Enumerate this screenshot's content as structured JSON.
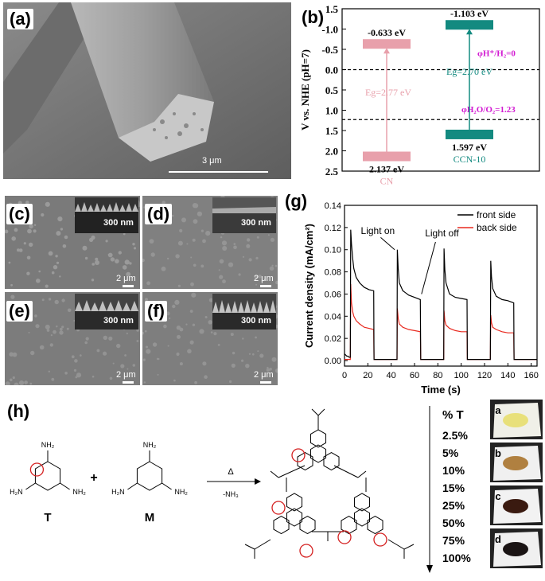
{
  "panels": {
    "a": {
      "label": "(a)",
      "scale": "3 μm"
    },
    "b": {
      "label": "(b)"
    },
    "c": {
      "label": "(c)",
      "inset_scale": "300 nm",
      "scale": "2 μm"
    },
    "d": {
      "label": "(d)",
      "inset_scale": "300 nm",
      "scale": "2 μm"
    },
    "e": {
      "label": "(e)",
      "inset_scale": "300 nm",
      "scale": "2 μm"
    },
    "f": {
      "label": "(f)",
      "inset_scale": "300 nm",
      "scale": "2 μm"
    },
    "g": {
      "label": "(g)"
    },
    "h": {
      "label": "(h)"
    }
  },
  "chart_data": [
    {
      "type": "band-diagram",
      "ylabel": "V vs. NHE (pH=7)",
      "ylim": [
        2.5,
        -1.5
      ],
      "yticks": [
        "-1.5",
        "-1.0",
        "-0.5",
        "0.0",
        "0.5",
        "1.0",
        "1.5",
        "2.0",
        "2.5"
      ],
      "ytick_values": [
        -1.5,
        -1.0,
        -0.5,
        0.0,
        0.5,
        1.0,
        1.5,
        2.0,
        2.5
      ],
      "reference_lines": [
        {
          "value": 0.0,
          "label": "φH⁺/H₂=0"
        },
        {
          "value": 1.23,
          "label": "φH₂O/O₂=1.23"
        }
      ],
      "materials": [
        {
          "name": "CN",
          "cb": -0.633,
          "vb": 2.137,
          "cb_label": "-0.633 eV",
          "vb_label": "2.137 eV",
          "eg_label": "Eg=2.77 eV",
          "color": "#e8a0ab"
        },
        {
          "name": "CCN-10",
          "cb": -1.103,
          "vb": 1.597,
          "cb_label": "-1.103 eV",
          "vb_label": "1.597 eV",
          "eg_label": "Eg=2.70 eV",
          "color": "#138a80"
        }
      ]
    },
    {
      "type": "line",
      "xlabel": "Time (s)",
      "ylabel": "Current density (mA/cm²)",
      "xlim": [
        0,
        165
      ],
      "ylim": [
        -0.005,
        0.14
      ],
      "xticks": [
        0,
        20,
        40,
        60,
        80,
        100,
        120,
        140,
        160
      ],
      "yticks": [
        0.0,
        0.02,
        0.04,
        0.06,
        0.08,
        0.1,
        0.12,
        0.14
      ],
      "ytick_labels": [
        "0.00",
        "0.02",
        "0.04",
        "0.06",
        "0.08",
        "0.10",
        "0.12",
        "0.14"
      ],
      "legend": "top-right",
      "annotations": [
        "Light on",
        "Light off"
      ],
      "series": [
        {
          "name": "front side",
          "color": "#000000",
          "x": [
            0,
            1,
            2,
            3,
            4,
            5,
            5.3,
            6,
            7,
            8,
            10,
            13,
            17,
            21,
            25,
            25.3,
            28,
            35,
            45,
            45.3,
            46,
            47,
            50,
            55,
            60,
            65,
            65.3,
            70,
            80,
            85,
            85.3,
            86,
            87,
            90,
            95,
            100,
            105,
            105.3,
            110,
            120,
            125,
            125.3,
            126,
            127,
            130,
            135,
            140,
            145,
            145.3,
            150,
            160,
            165
          ],
          "y": [
            0.006,
            0.005,
            0.004,
            0.004,
            0.003,
            0.003,
            0.118,
            0.105,
            0.092,
            0.083,
            0.075,
            0.07,
            0.066,
            0.064,
            0.063,
            0.001,
            0.001,
            0.001,
            0.001,
            0.1,
            0.083,
            0.07,
            0.063,
            0.059,
            0.057,
            0.055,
            0.001,
            0.001,
            0.001,
            0.001,
            0.101,
            0.082,
            0.07,
            0.06,
            0.057,
            0.056,
            0.055,
            0.001,
            0.001,
            0.001,
            0.001,
            0.09,
            0.075,
            0.065,
            0.058,
            0.055,
            0.054,
            0.052,
            0.001,
            0.001,
            0.001,
            0.001
          ]
        },
        {
          "name": "back side",
          "color": "#e8281e",
          "x": [
            0,
            5,
            5.3,
            6,
            7,
            8,
            10,
            13,
            17,
            21,
            25,
            25.3,
            28,
            35,
            45,
            45.3,
            46,
            47,
            50,
            55,
            60,
            65,
            65.3,
            70,
            80,
            85,
            85.3,
            86,
            87,
            90,
            95,
            100,
            105,
            105.3,
            110,
            120,
            125,
            125.3,
            126,
            127,
            130,
            135,
            140,
            145,
            145.3,
            150,
            160,
            165
          ],
          "y": [
            0.001,
            0.001,
            0.069,
            0.052,
            0.044,
            0.04,
            0.036,
            0.033,
            0.03,
            0.029,
            0.028,
            0.001,
            0.001,
            0.001,
            0.001,
            0.047,
            0.038,
            0.033,
            0.03,
            0.028,
            0.027,
            0.026,
            0.001,
            0.001,
            0.001,
            0.001,
            0.045,
            0.036,
            0.032,
            0.029,
            0.027,
            0.026,
            0.026,
            0.001,
            0.001,
            0.001,
            0.001,
            0.041,
            0.034,
            0.03,
            0.028,
            0.026,
            0.025,
            0.025,
            0.001,
            0.001,
            0.001,
            0.001
          ]
        }
      ]
    }
  ],
  "scheme": {
    "T_label": "T",
    "M_label": "M",
    "plus": "+",
    "arrow_top": "Δ",
    "arrow_bottom": "-NH₃",
    "nh2": "NH₂",
    "h2n": "H₂N",
    "percent_header": "% T",
    "percents": [
      "2.5%",
      "5%",
      "10%",
      "15%",
      "25%",
      "50%",
      "75%",
      "100%"
    ],
    "photo_labels": [
      "a",
      "b",
      "c",
      "d"
    ]
  }
}
